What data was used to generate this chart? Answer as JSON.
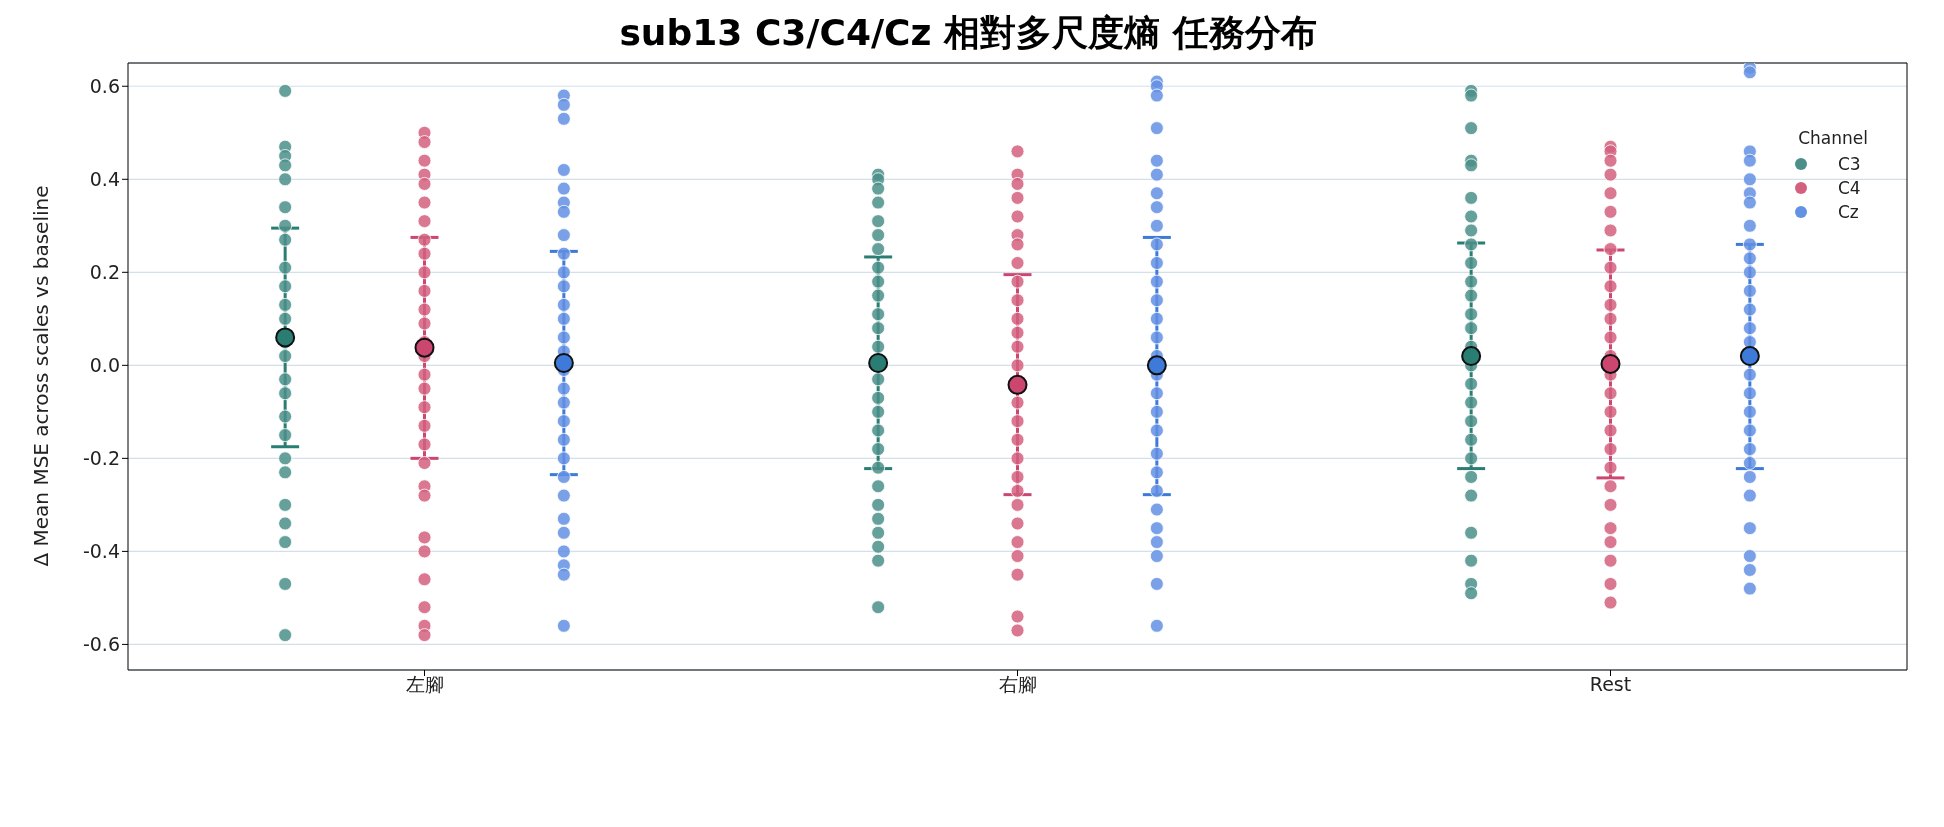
{
  "chart_data": {
    "type": "scatter",
    "title": "sub13 C3/C4/Cz 相對多尺度熵 任務分布",
    "ylabel": "Δ Mean MSE across scales vs baseline",
    "legend_title": "Channel",
    "categories": [
      "左腳",
      "右腳",
      "Rest"
    ],
    "ylim": [
      -0.655,
      0.65
    ],
    "yticks": [
      {
        "value": -0.6,
        "label": "-0.6"
      },
      {
        "value": -0.4,
        "label": "-0.4"
      },
      {
        "value": -0.2,
        "label": "-0.2"
      },
      {
        "value": 0,
        "label": "0.0"
      },
      {
        "value": 0.2,
        "label": "0.2"
      },
      {
        "value": 0.4,
        "label": "0.4"
      },
      {
        "value": 0.6,
        "label": "0.6"
      }
    ],
    "grid": "y",
    "legend": "top right",
    "marker": "circle",
    "series": [
      {
        "name": "C3",
        "color": "#4b8f89",
        "x": [
          "左腳",
          "左腳",
          "左腳",
          "左腳",
          "左腳",
          "左腳",
          "左腳",
          "左腳",
          "左腳",
          "左腳",
          "左腳",
          "左腳",
          "左腳",
          "左腳",
          "左腳",
          "左腳",
          "左腳",
          "左腳",
          "左腳",
          "左腳",
          "左腳",
          "左腳",
          "左腳",
          "左腳",
          "左腳",
          "右腳",
          "右腳",
          "右腳",
          "右腳",
          "右腳",
          "右腳",
          "右腳",
          "右腳",
          "右腳",
          "右腳",
          "右腳",
          "右腳",
          "右腳",
          "右腳",
          "右腳",
          "右腳",
          "右腳",
          "右腳",
          "右腳",
          "右腳",
          "右腳",
          "右腳",
          "右腳",
          "右腳",
          "右腳",
          "右腳",
          "Rest",
          "Rest",
          "Rest",
          "Rest",
          "Rest",
          "Rest",
          "Rest",
          "Rest",
          "Rest",
          "Rest",
          "Rest",
          "Rest",
          "Rest",
          "Rest",
          "Rest",
          "Rest",
          "Rest",
          "Rest",
          "Rest",
          "Rest",
          "Rest",
          "Rest",
          "Rest",
          "Rest",
          "Rest",
          "Rest",
          "Rest"
        ],
        "values": [
          0.59,
          0.47,
          0.45,
          0.43,
          0.4,
          0.34,
          0.3,
          0.27,
          0.21,
          0.17,
          0.13,
          0.1,
          0.05,
          0.02,
          -0.03,
          -0.06,
          -0.11,
          -0.15,
          -0.2,
          -0.23,
          -0.3,
          -0.34,
          -0.38,
          -0.47,
          -0.58,
          0.41,
          0.4,
          0.38,
          0.35,
          0.31,
          0.28,
          0.25,
          0.21,
          0.18,
          0.15,
          0.11,
          0.08,
          0.04,
          -0.03,
          -0.07,
          -0.1,
          -0.14,
          -0.18,
          -0.22,
          -0.26,
          -0.3,
          -0.33,
          -0.36,
          -0.39,
          -0.42,
          -0.52,
          0.59,
          0.58,
          0.51,
          0.44,
          0.43,
          0.36,
          0.32,
          0.29,
          0.26,
          0.22,
          0.18,
          0.15,
          0.11,
          0.08,
          0.04,
          0.0,
          -0.04,
          -0.08,
          -0.12,
          -0.16,
          -0.2,
          -0.24,
          -0.28,
          -0.36,
          -0.42,
          -0.47,
          -0.49
        ]
      },
      {
        "name": "C4",
        "color": "#d4607f",
        "x": [
          "左腳",
          "左腳",
          "左腳",
          "左腳",
          "左腳",
          "左腳",
          "左腳",
          "左腳",
          "左腳",
          "左腳",
          "左腳",
          "左腳",
          "左腳",
          "左腳",
          "左腳",
          "左腳",
          "左腳",
          "左腳",
          "左腳",
          "左腳",
          "左腳",
          "左腳",
          "左腳",
          "左腳",
          "左腳",
          "左腳",
          "左腳",
          "左腳",
          "左腳",
          "右腳",
          "右腳",
          "右腳",
          "右腳",
          "右腳",
          "右腳",
          "右腳",
          "右腳",
          "右腳",
          "右腳",
          "右腳",
          "右腳",
          "右腳",
          "右腳",
          "右腳",
          "右腳",
          "右腳",
          "右腳",
          "右腳",
          "右腳",
          "右腳",
          "右腳",
          "右腳",
          "右腳",
          "右腳",
          "右腳",
          "右腳",
          "Rest",
          "Rest",
          "Rest",
          "Rest",
          "Rest",
          "Rest",
          "Rest",
          "Rest",
          "Rest",
          "Rest",
          "Rest",
          "Rest",
          "Rest",
          "Rest",
          "Rest",
          "Rest",
          "Rest",
          "Rest",
          "Rest",
          "Rest",
          "Rest",
          "Rest",
          "Rest",
          "Rest",
          "Rest",
          "Rest",
          "Rest"
        ],
        "values": [
          0.5,
          0.48,
          0.44,
          0.41,
          0.39,
          0.35,
          0.31,
          0.27,
          0.24,
          0.2,
          0.16,
          0.12,
          0.09,
          0.05,
          0.02,
          -0.02,
          -0.05,
          -0.09,
          -0.13,
          -0.17,
          -0.21,
          -0.26,
          -0.28,
          -0.37,
          -0.4,
          -0.46,
          -0.52,
          -0.56,
          -0.58,
          0.46,
          0.41,
          0.39,
          0.36,
          0.32,
          0.28,
          0.26,
          0.22,
          0.18,
          0.14,
          0.1,
          0.07,
          0.04,
          0.0,
          -0.08,
          -0.12,
          -0.16,
          -0.2,
          -0.24,
          -0.27,
          -0.3,
          -0.34,
          -0.38,
          -0.41,
          -0.45,
          -0.54,
          -0.57,
          0.47,
          0.46,
          0.44,
          0.41,
          0.37,
          0.33,
          0.29,
          0.25,
          0.21,
          0.17,
          0.13,
          0.1,
          0.06,
          0.02,
          -0.02,
          -0.06,
          -0.1,
          -0.14,
          -0.18,
          -0.22,
          -0.26,
          -0.3,
          -0.35,
          -0.38,
          -0.42,
          -0.47,
          -0.51
        ]
      },
      {
        "name": "Cz",
        "color": "#6391e3",
        "x": [
          "左腳",
          "左腳",
          "左腳",
          "左腳",
          "左腳",
          "左腳",
          "左腳",
          "左腳",
          "左腳",
          "左腳",
          "左腳",
          "左腳",
          "左腳",
          "左腳",
          "左腳",
          "左腳",
          "左腳",
          "左腳",
          "左腳",
          "左腳",
          "左腳",
          "左腳",
          "左腳",
          "左腳",
          "左腳",
          "左腳",
          "左腳",
          "左腳",
          "左腳",
          "右腳",
          "右腳",
          "右腳",
          "右腳",
          "右腳",
          "右腳",
          "右腳",
          "右腳",
          "右腳",
          "右腳",
          "右腳",
          "右腳",
          "右腳",
          "右腳",
          "右腳",
          "右腳",
          "右腳",
          "右腳",
          "右腳",
          "右腳",
          "右腳",
          "右腳",
          "右腳",
          "右腳",
          "右腳",
          "右腳",
          "右腳",
          "右腳",
          "右腳",
          "Rest",
          "Rest",
          "Rest",
          "Rest",
          "Rest",
          "Rest",
          "Rest",
          "Rest",
          "Rest",
          "Rest",
          "Rest",
          "Rest",
          "Rest",
          "Rest",
          "Rest",
          "Rest",
          "Rest",
          "Rest",
          "Rest",
          "Rest",
          "Rest",
          "Rest",
          "Rest",
          "Rest",
          "Rest",
          "Rest",
          "Rest"
        ],
        "values": [
          0.58,
          0.56,
          0.53,
          0.42,
          0.38,
          0.35,
          0.33,
          0.28,
          0.24,
          0.2,
          0.17,
          0.13,
          0.1,
          0.06,
          0.03,
          -0.01,
          -0.05,
          -0.08,
          -0.12,
          -0.16,
          -0.2,
          -0.24,
          -0.28,
          -0.33,
          -0.36,
          -0.4,
          -0.43,
          -0.45,
          -0.56,
          0.61,
          0.6,
          0.58,
          0.51,
          0.44,
          0.41,
          0.37,
          0.34,
          0.3,
          0.26,
          0.22,
          0.18,
          0.14,
          0.1,
          0.06,
          0.02,
          -0.02,
          -0.06,
          -0.1,
          -0.14,
          -0.19,
          -0.23,
          -0.27,
          -0.31,
          -0.35,
          -0.38,
          -0.41,
          -0.47,
          -0.56,
          0.64,
          0.63,
          0.46,
          0.44,
          0.4,
          0.37,
          0.35,
          0.3,
          0.26,
          0.23,
          0.2,
          0.16,
          0.12,
          0.08,
          0.05,
          -0.02,
          -0.06,
          -0.1,
          -0.14,
          -0.18,
          -0.21,
          -0.24,
          -0.28,
          -0.35,
          -0.41,
          -0.44,
          -0.48
        ]
      },
      {
        "color": "#2a7d72",
        "x": [
          "左腳",
          "右腳",
          "Rest"
        ],
        "values": [
          0.06,
          0.005,
          0.02
        ],
        "errors": [
          [
            -0.175,
            0.295
          ],
          [
            -0.222,
            0.233
          ],
          [
            -0.222,
            0.263
          ]
        ]
      },
      {
        "color": "#cb4770",
        "x": [
          "左腳",
          "右腳",
          "Rest"
        ],
        "values": [
          0.038,
          -0.042,
          0.003
        ],
        "errors": [
          [
            -0.2,
            0.275
          ],
          [
            -0.278,
            0.195
          ],
          [
            -0.242,
            0.248
          ]
        ]
      },
      {
        "color": "#3d7ad9",
        "x": [
          "左腳",
          "右腳",
          "Rest"
        ],
        "values": [
          0.005,
          0.0,
          0.02
        ],
        "errors": [
          [
            -0.235,
            0.245
          ],
          [
            -0.278,
            0.275
          ],
          [
            -0.222,
            0.26
          ]
        ]
      }
    ]
  }
}
